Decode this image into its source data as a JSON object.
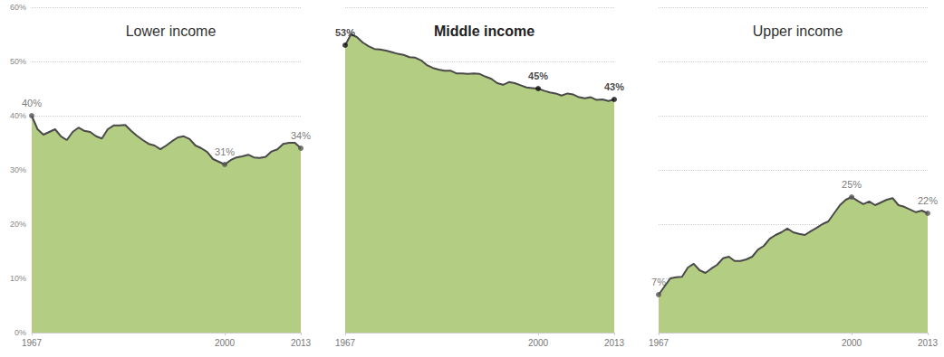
{
  "chart_data": [
    {
      "type": "area",
      "title": "Lower income",
      "color": "#b3cd83",
      "grid": true,
      "x": [
        1967,
        1968,
        1969,
        1970,
        1971,
        1972,
        1973,
        1974,
        1975,
        1976,
        1977,
        1978,
        1979,
        1980,
        1981,
        1982,
        1983,
        1984,
        1985,
        1986,
        1987,
        1988,
        1989,
        1990,
        1991,
        1992,
        1993,
        1994,
        1995,
        1996,
        1997,
        1998,
        1999,
        2000,
        2001,
        2002,
        2003,
        2004,
        2005,
        2006,
        2007,
        2008,
        2009,
        2010,
        2011,
        2012,
        2013
      ],
      "values": [
        40,
        37.5,
        36.5,
        37,
        37.5,
        36.2,
        35.5,
        37,
        37.8,
        37.2,
        37,
        36.2,
        35.8,
        37.5,
        38.2,
        38.2,
        38.3,
        37.2,
        36.3,
        35.5,
        34.8,
        34.5,
        33.8,
        34.5,
        35.3,
        36,
        36.2,
        35.7,
        34.5,
        34,
        33.3,
        32,
        31.5,
        31,
        31.8,
        32.3,
        32.5,
        32.8,
        32.3,
        32.2,
        32.4,
        33.4,
        33.8,
        34.8,
        35,
        35,
        34
      ],
      "xlim": [
        1967,
        2013
      ],
      "xticks": [
        1967,
        2000,
        2013
      ],
      "ylim": [
        0,
        60
      ],
      "yticks": [
        {
          "value": 0,
          "label": "0%"
        },
        {
          "value": 10,
          "label": "10%"
        },
        {
          "value": 20,
          "label": "20%"
        },
        {
          "value": 30,
          "label": "30%"
        },
        {
          "value": 40,
          "label": "40%"
        },
        {
          "value": 50,
          "label": "50%"
        },
        {
          "value": 60,
          "label": "60%"
        }
      ],
      "annotations": [
        {
          "x": 1967,
          "y": 40,
          "text": "40%"
        },
        {
          "x": 2000,
          "y": 31,
          "text": "31%"
        },
        {
          "x": 2013,
          "y": 34,
          "text": "34%"
        }
      ]
    },
    {
      "type": "area",
      "title": "Middle income",
      "color": "#b3cd83",
      "grid": true,
      "tick_labels": "x",
      "x": [
        1967,
        1968,
        1969,
        1970,
        1971,
        1972,
        1973,
        1974,
        1975,
        1976,
        1977,
        1978,
        1979,
        1980,
        1981,
        1982,
        1983,
        1984,
        1985,
        1986,
        1987,
        1988,
        1989,
        1990,
        1991,
        1992,
        1993,
        1994,
        1995,
        1996,
        1997,
        1998,
        1999,
        2000,
        2001,
        2002,
        2003,
        2004,
        2005,
        2006,
        2007,
        2008,
        2009,
        2010,
        2011,
        2012,
        2013
      ],
      "values": [
        53,
        55,
        54.5,
        53.5,
        52.8,
        52.3,
        52.2,
        52,
        51.7,
        51.4,
        51.2,
        50.8,
        50.7,
        50.2,
        49.3,
        48.8,
        48.5,
        48.3,
        48.3,
        47.8,
        47.8,
        47.7,
        47.8,
        47.7,
        47.2,
        46.8,
        46,
        45.7,
        46.2,
        46,
        45.6,
        45.2,
        45.1,
        45,
        44.6,
        44.3,
        44.1,
        43.7,
        44.1,
        43.9,
        43.4,
        43.2,
        43.4,
        42.9,
        43,
        42.7,
        43
      ],
      "xlim": [
        1967,
        2013
      ],
      "xticks": [
        1967,
        2000,
        2013
      ],
      "ylim": [
        0,
        60
      ],
      "yticks": [
        {
          "value": 0,
          "label": "0%"
        },
        {
          "value": 10,
          "label": "10%"
        },
        {
          "value": 20,
          "label": "20%"
        },
        {
          "value": 30,
          "label": "30%"
        },
        {
          "value": 40,
          "label": "40%"
        },
        {
          "value": 50,
          "label": "50%"
        },
        {
          "value": 60,
          "label": "60%"
        }
      ],
      "annotations": [
        {
          "x": 1967,
          "y": 53,
          "text": "53%"
        },
        {
          "x": 2000,
          "y": 45,
          "text": "45%"
        },
        {
          "x": 2013,
          "y": 43,
          "text": "43%"
        }
      ]
    },
    {
      "type": "area",
      "title": "Upper income",
      "color": "#b3cd83",
      "grid": true,
      "tick_labels": "x",
      "x": [
        1967,
        1968,
        1969,
        1970,
        1971,
        1972,
        1973,
        1974,
        1975,
        1976,
        1977,
        1978,
        1979,
        1980,
        1981,
        1982,
        1983,
        1984,
        1985,
        1986,
        1987,
        1988,
        1989,
        1990,
        1991,
        1992,
        1993,
        1994,
        1995,
        1996,
        1997,
        1998,
        1999,
        2000,
        2001,
        2002,
        2003,
        2004,
        2005,
        2006,
        2007,
        2008,
        2009,
        2010,
        2011,
        2012,
        2013
      ],
      "values": [
        7,
        8.5,
        10,
        10.2,
        10.3,
        12,
        12.7,
        11.5,
        11,
        11.8,
        12.5,
        13.7,
        14,
        13.2,
        13.2,
        13.5,
        14,
        15.3,
        16,
        17.3,
        18,
        18.5,
        19.2,
        18.5,
        18.2,
        18,
        18.7,
        19.3,
        20,
        20.5,
        22,
        23.5,
        24.5,
        25,
        24.3,
        23.7,
        24.2,
        23.5,
        24,
        24.5,
        24.8,
        23.5,
        23.2,
        22.7,
        22.2,
        22.5,
        22
      ],
      "xlim": [
        1967,
        2013
      ],
      "xticks": [
        1967,
        2000,
        2013
      ],
      "ylim": [
        0,
        60
      ],
      "yticks": [
        {
          "value": 0,
          "label": "0%"
        },
        {
          "value": 10,
          "label": "10%"
        },
        {
          "value": 20,
          "label": "20%"
        },
        {
          "value": 30,
          "label": "30%"
        },
        {
          "value": 40,
          "label": "40%"
        },
        {
          "value": 50,
          "label": "50%"
        },
        {
          "value": 60,
          "label": "60%"
        }
      ],
      "annotations": [
        {
          "x": 2000,
          "y": 25,
          "text": "25%"
        },
        {
          "x": 2013,
          "y": 22,
          "text": "22%"
        },
        {
          "x": 1967,
          "y": 7,
          "text": "7%"
        }
      ]
    }
  ]
}
